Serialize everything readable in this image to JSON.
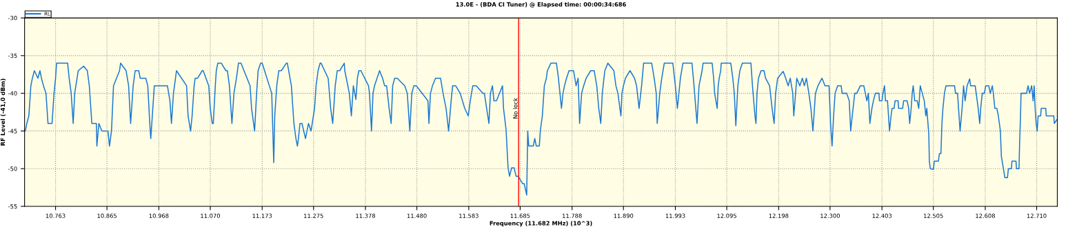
{
  "chart_data": {
    "type": "line",
    "title": "13.0E - (BDA CI Tuner) @ Elapsed time: 00:00:34:686",
    "xlabel": "Frequency (11.682 MHz) (10^3)",
    "ylabel": "RF Level (-41,0 dBm)",
    "legend": "top left",
    "grid": true,
    "marker": "none",
    "line_style": "solid",
    "xlim": [
      10.7015,
      12.751
    ],
    "ylim": [
      -55,
      -30
    ],
    "xticks": [
      10.763,
      10.865,
      10.968,
      {
        "value": 11.07,
        "label": "11.070"
      },
      11.173,
      11.275,
      11.378,
      {
        "value": 11.48,
        "label": "11.480"
      },
      11.583,
      11.685,
      11.788,
      {
        "value": 11.89,
        "label": "11.890"
      },
      11.993,
      12.095,
      12.198,
      {
        "value": 12.3,
        "label": "12.300"
      },
      12.403,
      12.505,
      12.608,
      {
        "value": 12.71,
        "label": "12.710"
      }
    ],
    "yticks": [
      -55,
      -50,
      -45,
      -40,
      -35,
      -30
    ],
    "ref_lines": [
      {
        "axis": "x",
        "value": 11.682,
        "label": "No lock",
        "color": "#ff0000"
      }
    ],
    "series": [
      {
        "name": "RL",
        "color": "#1a78d2",
        "x": [
          10.703,
          10.706,
          10.71,
          10.712,
          10.714,
          10.717,
          10.721,
          10.728,
          10.732,
          10.735,
          10.739,
          10.744,
          10.748,
          10.753,
          10.756,
          10.76,
          10.763,
          10.765,
          10.787,
          10.79,
          10.794,
          10.798,
          10.801,
          10.808,
          10.819,
          10.826,
          10.83,
          10.835,
          10.844,
          10.845,
          10.849,
          10.855,
          10.867,
          10.87,
          10.874,
          10.878,
          10.89,
          10.892,
          10.903,
          10.908,
          10.912,
          10.917,
          10.921,
          10.928,
          10.931,
          10.942,
          10.946,
          10.95,
          10.952,
          10.956,
          10.959,
          10.969,
          10.978,
          10.985,
          10.99,
          10.993,
          10.997,
          11.003,
          11.023,
          11.026,
          11.031,
          11.034,
          11.038,
          11.04,
          11.045,
          11.054,
          11.056,
          11.067,
          11.07,
          11.074,
          11.076,
          11.08,
          11.082,
          11.085,
          11.092,
          11.101,
          11.104,
          11.108,
          11.113,
          11.117,
          11.122,
          11.126,
          11.131,
          11.149,
          11.152,
          11.158,
          11.162,
          11.165,
          11.17,
          11.173,
          11.192,
          11.196,
          11.198,
          11.202,
          11.206,
          11.211,
          11.221,
          11.223,
          11.231,
          11.236,
          11.24,
          11.243,
          11.245,
          11.248,
          11.252,
          11.259,
          11.262,
          11.265,
          11.27,
          11.277,
          11.28,
          11.284,
          11.288,
          11.29,
          11.304,
          11.309,
          11.313,
          11.318,
          11.322,
          11.327,
          11.336,
          11.337,
          11.346,
          11.35,
          11.354,
          11.359,
          11.362,
          11.365,
          11.369,
          11.384,
          11.386,
          11.39,
          11.393,
          11.396,
          11.401,
          11.406,
          11.412,
          11.416,
          11.42,
          11.425,
          11.429,
          11.432,
          11.436,
          11.441,
          11.456,
          11.461,
          11.466,
          11.47,
          11.474,
          11.479,
          11.502,
          11.504,
          11.507,
          11.511,
          11.517,
          11.527,
          11.532,
          11.538,
          11.543,
          11.548,
          11.551,
          11.557,
          11.566,
          11.575,
          11.582,
          11.586,
          11.591,
          11.598,
          11.611,
          11.614,
          11.623,
          11.626,
          11.63,
          11.633,
          11.638,
          11.65,
          11.652,
          11.657,
          11.661,
          11.664,
          11.668,
          11.673,
          11.677,
          11.681,
          11.69,
          11.693,
          11.698,
          11.7,
          11.702,
          11.711,
          11.714,
          11.717,
          11.723,
          11.725,
          11.729,
          11.733,
          11.737,
          11.739,
          11.746,
          11.757,
          11.761,
          11.764,
          11.767,
          11.77,
          11.773,
          11.777,
          11.782,
          11.791,
          11.796,
          11.8,
          11.803,
          11.807,
          11.811,
          11.816,
          11.825,
          11.832,
          11.837,
          11.841,
          11.845,
          11.848,
          11.853,
          11.859,
          11.871,
          11.875,
          11.879,
          11.885,
          11.887,
          11.89,
          11.894,
          11.903,
          11.912,
          11.916,
          11.921,
          11.926,
          11.93,
          11.946,
          11.951,
          11.955,
          11.957,
          11.962,
          11.966,
          11.971,
          11.988,
          11.993,
          11.997,
          12.003,
          12.008,
          12.026,
          12.03,
          12.036,
          12.04,
          12.046,
          12.048,
          12.066,
          12.069,
          12.071,
          12.076,
          12.078,
          12.08,
          12.083,
          12.084,
          12.103,
          12.107,
          12.11,
          12.113,
          12.117,
          12.121,
          12.126,
          12.143,
          12.146,
          12.151,
          12.153,
          12.155,
          12.158,
          12.163,
          12.169,
          12.172,
          12.18,
          12.185,
          12.189,
          12.192,
          12.196,
          12.207,
          12.212,
          12.217,
          12.221,
          12.226,
          12.228,
          12.234,
          12.24,
          12.245,
          12.249,
          12.253,
          12.258,
          12.262,
          12.266,
          12.269,
          12.271,
          12.276,
          12.284,
          12.29,
          12.298,
          12.301,
          12.304,
          12.307,
          12.31,
          12.315,
          12.322,
          12.324,
          12.333,
          12.338,
          12.341,
          12.344,
          12.349,
          12.353,
          12.36,
          12.367,
          12.373,
          12.376,
          12.379,
          12.383,
          12.386,
          12.39,
          12.397,
          12.398,
          12.403,
          12.405,
          12.408,
          12.41,
          12.414,
          12.416,
          12.418,
          12.421,
          12.423,
          12.427,
          12.429,
          12.435,
          12.436,
          12.444,
          12.446,
          12.453,
          12.456,
          12.458,
          12.461,
          12.463,
          12.465,
          12.468,
          12.473,
          12.476,
          12.479,
          12.483,
          12.487,
          12.49,
          12.492,
          12.496,
          12.497,
          12.499,
          12.505,
          12.507,
          12.515,
          12.517,
          12.52,
          12.522,
          12.524,
          12.527,
          12.53,
          12.547,
          12.549,
          12.553,
          12.555,
          12.558,
          12.562,
          12.565,
          12.568,
          12.572,
          12.577,
          12.579,
          12.588,
          12.59,
          12.594,
          12.597,
          12.599,
          12.602,
          12.606,
          12.609,
          12.615,
          12.618,
          12.622,
          12.624,
          12.627,
          12.631,
          12.634,
          12.638,
          12.64,
          12.644,
          12.647,
          12.652,
          12.654,
          12.66,
          12.661,
          12.669,
          12.67,
          12.675,
          12.676,
          12.678,
          12.679,
          12.681,
          12.69,
          12.693,
          12.696,
          12.7,
          12.703,
          12.705,
          12.707,
          12.709,
          12.711,
          12.713,
          12.718,
          12.719,
          12.728,
          12.729,
          12.744,
          12.745,
          12.75
        ],
        "values": [
          -45,
          -44,
          -43,
          -41,
          -39,
          -38,
          -37,
          -38,
          -37,
          -38,
          -39,
          -40,
          -44,
          -44,
          -44,
          -40,
          -38,
          -36,
          -36,
          -38,
          -40,
          -44,
          -40,
          -37,
          -36.4,
          -37,
          -39,
          -44,
          -44,
          -47,
          -44,
          -45,
          -45,
          -47,
          -45,
          -39,
          -37,
          -36,
          -37,
          -39,
          -44,
          -39,
          -37,
          -37,
          -38,
          -38,
          -39,
          -44,
          -46,
          -42,
          -39,
          -39,
          -39,
          -39,
          -41,
          -44,
          -40,
          -37,
          -39,
          -43,
          -45,
          -43,
          -39,
          -38,
          -38,
          -37,
          -37,
          -39,
          -42,
          -44,
          -44,
          -39,
          -37,
          -36,
          -36,
          -37,
          -37,
          -39,
          -44,
          -40,
          -38,
          -36,
          -36,
          -39,
          -42,
          -45,
          -40,
          -37,
          -36,
          -36,
          -40,
          -49.2,
          -43,
          -39,
          -37,
          -37,
          -36,
          -36,
          -39,
          -44,
          -46,
          -47,
          -46,
          -44,
          -44,
          -46,
          -45,
          -44,
          -45,
          -42,
          -39,
          -37,
          -36,
          -36,
          -38,
          -42,
          -44,
          -39,
          -37,
          -37,
          -36,
          -37,
          -40,
          -43,
          -39,
          -40.8,
          -38,
          -37,
          -37,
          -39,
          -40,
          -45,
          -40,
          -39,
          -38,
          -37,
          -38,
          -39,
          -39,
          -42,
          -44,
          -39,
          -38,
          -38,
          -39,
          -40,
          -45,
          -40,
          -39,
          -39,
          -41,
          -44,
          -40,
          -39,
          -38,
          -38,
          -40,
          -42,
          -45,
          -41,
          -39,
          -39,
          -40,
          -42,
          -43,
          -41,
          -39,
          -39,
          -40,
          -40,
          -44,
          -40,
          -39,
          -41,
          -41,
          -39,
          -42,
          -44.8,
          -49.9,
          -51,
          -49.9,
          -49.9,
          -51,
          -51,
          -52,
          -52,
          -53.5,
          -45,
          -47,
          -47,
          -46,
          -47,
          -47,
          -45,
          -43,
          -39,
          -38,
          -37,
          -36,
          -36,
          -38,
          -40,
          -42,
          -40,
          -39,
          -38,
          -37,
          -37,
          -39,
          -38,
          -44,
          -40,
          -39,
          -38,
          -37,
          -37,
          -39,
          -42,
          -44,
          -40,
          -37,
          -36,
          -37,
          -39,
          -40,
          -43,
          -40,
          -39,
          -38,
          -37,
          -38,
          -39,
          -42,
          -39,
          -36,
          -36,
          -38,
          -40,
          -44,
          -40,
          -38,
          -36,
          -36,
          -39,
          -42,
          -38,
          -36,
          -36,
          -39,
          -44,
          -39,
          -37,
          -36,
          -36,
          -38,
          -40,
          -42,
          -39,
          -38,
          -37,
          -36,
          -36,
          -38,
          -40,
          -44.3,
          -39,
          -37,
          -36,
          -36,
          -39,
          -43,
          -44,
          -40,
          -38,
          -37,
          -37,
          -38,
          -39,
          -42,
          -44,
          -40,
          -38,
          -37.1,
          -38,
          -39,
          -38,
          -40,
          -43,
          -38,
          -39,
          -38,
          -39,
          -38,
          -40,
          -42,
          -45,
          -42,
          -40,
          -39,
          -38,
          -39,
          -39,
          -44,
          -47,
          -43,
          -40,
          -39,
          -39,
          -40,
          -40,
          -41,
          -45,
          -43,
          -40,
          -40,
          -39,
          -39,
          -41,
          -40,
          -44,
          -42,
          -41,
          -40,
          -40,
          -41,
          -41,
          -40,
          -39,
          -41,
          -41,
          -43,
          -45,
          -43,
          -42,
          -42,
          -41,
          -41,
          -42,
          -42,
          -41,
          -41,
          -42,
          -44,
          -42,
          -40,
          -39,
          -41,
          -41,
          -42,
          -39,
          -40,
          -41,
          -43,
          -42,
          -45.5,
          -49,
          -50,
          -50.1,
          -49,
          -49,
          -48,
          -48,
          -44,
          -42,
          -40,
          -39,
          -39,
          -40,
          -40,
          -42,
          -45,
          -42,
          -39,
          -41,
          -39,
          -38.1,
          -39,
          -39,
          -40,
          -42,
          -44,
          -42,
          -40,
          -40,
          -39,
          -39,
          -40,
          -39,
          -40,
          -42,
          -42,
          -43,
          -45,
          -48.4,
          -50,
          -51.2,
          -51.2,
          -50,
          -50,
          -49,
          -49,
          -50,
          -50,
          -47,
          -43,
          -40,
          -40,
          -40,
          -39,
          -40,
          -39,
          -41,
          -39,
          -42,
          -44,
          -45,
          -43,
          -43,
          -42,
          -42,
          -43,
          -43,
          -44,
          -43.5
        ]
      }
    ]
  }
}
